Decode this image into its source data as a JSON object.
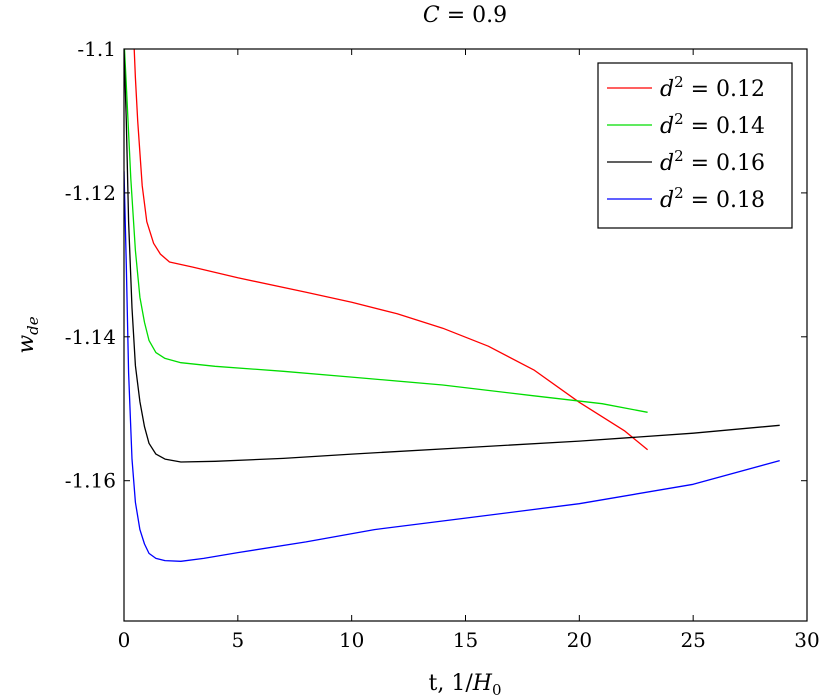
{
  "chart_data": {
    "type": "line",
    "title": {
      "main": "C",
      "rest": " = 0.9"
    },
    "xlabel": {
      "main": "t, 1/",
      "var": "H",
      "sub": "0"
    },
    "ylabel": {
      "main": "w",
      "sub": "de"
    },
    "xlim": [
      0,
      30
    ],
    "ylim": [
      -1.1795,
      -1.1
    ],
    "xticks": [
      0,
      5,
      10,
      15,
      20,
      25,
      30
    ],
    "xtick_labels": [
      "0",
      "5",
      "10",
      "15",
      "20",
      "25",
      "30"
    ],
    "yticks": [
      -1.1,
      -1.12,
      -1.14,
      -1.16
    ],
    "ytick_labels": [
      "-1.1",
      "-1.12",
      "-1.14",
      "-1.16"
    ],
    "grid": false,
    "legend_position": "top-right",
    "series": [
      {
        "name": "d2 = 0.12",
        "legend": {
          "var": "d",
          "sup": "2",
          "rest": " = 0.12"
        },
        "color": "#ff0000",
        "x": [
          0.45,
          0.5,
          0.6,
          0.8,
          1.0,
          1.3,
          1.6,
          2.0,
          3.0,
          5.0,
          8.0,
          10.0,
          12.0,
          14.0,
          16.0,
          18.0,
          20.0,
          22.0,
          23.0
        ],
        "y": [
          -1.1,
          -1.104,
          -1.11,
          -1.119,
          -1.124,
          -1.127,
          -1.1285,
          -1.1296,
          -1.1303,
          -1.1318,
          -1.1338,
          -1.1352,
          -1.1368,
          -1.1388,
          -1.1413,
          -1.1446,
          -1.1491,
          -1.1531,
          -1.1557
        ]
      },
      {
        "name": "d2 = 0.14",
        "legend": {
          "var": "d",
          "sup": "2",
          "rest": " = 0.14"
        },
        "color": "#00dd00",
        "x": [
          0.02,
          0.1,
          0.3,
          0.5,
          0.7,
          0.9,
          1.1,
          1.4,
          1.8,
          2.5,
          4.0,
          7.0,
          10.0,
          14.0,
          18.0,
          21.0,
          23.0
        ],
        "y": [
          -1.1,
          -1.105,
          -1.118,
          -1.128,
          -1.1345,
          -1.138,
          -1.1405,
          -1.1422,
          -1.143,
          -1.1436,
          -1.1441,
          -1.1448,
          -1.1456,
          -1.1467,
          -1.1482,
          -1.1493,
          -1.1505
        ]
      },
      {
        "name": "d2 = 0.16",
        "legend": {
          "var": "d",
          "sup": "2",
          "rest": " = 0.16"
        },
        "color": "#000000",
        "x": [
          0.0,
          0.1,
          0.2,
          0.35,
          0.5,
          0.7,
          0.9,
          1.1,
          1.4,
          1.8,
          2.5,
          4.0,
          7.0,
          10.0,
          15.0,
          20.0,
          25.0,
          28.8
        ],
        "y": [
          -1.1,
          -1.11,
          -1.124,
          -1.136,
          -1.144,
          -1.149,
          -1.1525,
          -1.1548,
          -1.1563,
          -1.157,
          -1.1574,
          -1.1573,
          -1.1569,
          -1.1563,
          -1.1554,
          -1.1545,
          -1.1534,
          -1.1523
        ]
      },
      {
        "name": "d2 = 0.18",
        "legend": {
          "var": "d",
          "sup": "2",
          "rest": " = 0.18"
        },
        "color": "#0000ff",
        "x": [
          0.0,
          0.1,
          0.2,
          0.35,
          0.5,
          0.7,
          0.9,
          1.1,
          1.4,
          1.8,
          2.5,
          3.5,
          5.0,
          8.0,
          11.0,
          15.0,
          20.0,
          25.0,
          28.8
        ],
        "y": [
          -1.117,
          -1.13,
          -1.145,
          -1.157,
          -1.163,
          -1.1668,
          -1.1688,
          -1.1701,
          -1.1708,
          -1.1711,
          -1.1712,
          -1.1708,
          -1.17,
          -1.1685,
          -1.1668,
          -1.1652,
          -1.1632,
          -1.1605,
          -1.1572
        ]
      }
    ]
  }
}
